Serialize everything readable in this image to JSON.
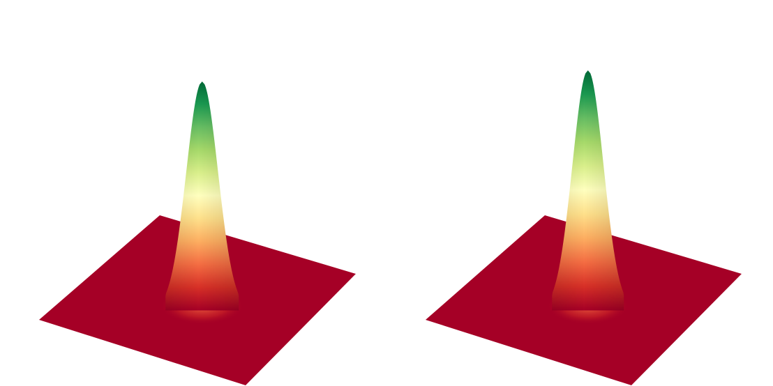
{
  "figure": {
    "background": "#ffffff"
  },
  "colormap": {
    "name": "RdYlGn",
    "stops": [
      "#a50026",
      "#d73027",
      "#f46d43",
      "#fdae61",
      "#fee08b",
      "#ffffbf",
      "#d9ef8b",
      "#a6d96a",
      "#66bd63",
      "#1a9850",
      "#006837"
    ]
  },
  "chart_data": [
    {
      "type": "surface3d",
      "title": "",
      "xlabel": "",
      "ylabel": "",
      "zlabel": "",
      "axes_visible": false,
      "grid": false,
      "surface": "gaussian",
      "base_value": 0,
      "peak_value": 1,
      "peak_width": 0.055,
      "peak_center": [
        0.5,
        0.5
      ]
    },
    {
      "type": "surface3d",
      "title": "",
      "xlabel": "",
      "ylabel": "",
      "zlabel": "",
      "axes_visible": false,
      "grid": false,
      "surface": "gaussian",
      "base_value": 0,
      "peak_value": 1,
      "peak_width": 0.055,
      "peak_center": [
        0.5,
        0.5
      ]
    }
  ]
}
